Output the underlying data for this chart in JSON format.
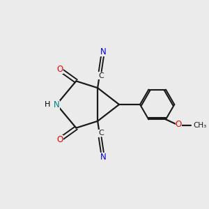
{
  "bg_color": "#ebebeb",
  "bond_color": "#1a1a1a",
  "N_color": "#008080",
  "O_color": "#ff0000",
  "CN_color": "#0000ee",
  "figsize": [
    3.0,
    3.0
  ],
  "dpi": 100,
  "xlim": [
    0,
    10
  ],
  "ylim": [
    0,
    10
  ]
}
